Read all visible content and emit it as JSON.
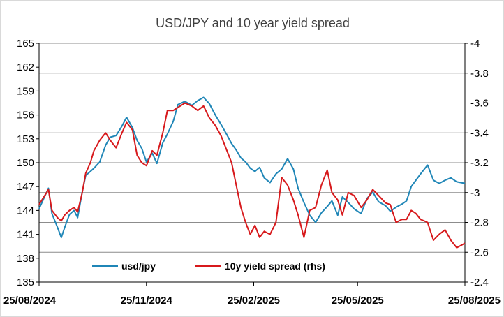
{
  "chart_data": {
    "type": "line",
    "title": "USD/JPY and 10 year yield spread",
    "x_ticks": [
      "25/08/2024",
      "25/11/2024",
      "25/02/2025",
      "25/05/2025",
      "25/08/2025"
    ],
    "y_left": {
      "ylim": [
        135,
        165
      ],
      "ticks": [
        "165",
        "162",
        "159",
        "156",
        "153",
        "150",
        "147",
        "144",
        "141",
        "138",
        "135"
      ]
    },
    "y_right": {
      "ylim": [
        -4.0,
        -2.4
      ],
      "ticks": [
        "-4",
        "-3.8",
        "-3.6",
        "-3.4",
        "-3.2",
        "-3",
        "-2.8",
        "-2.6",
        "-2.4"
      ],
      "inverted": true
    },
    "grid": "horizontal",
    "legend_position": "bottom",
    "colors": {
      "usdjpy": "#1F86B7",
      "spread": "#D7191C"
    },
    "series": [
      {
        "name": "usd/jpy",
        "axis": "left",
        "x": [
          "2024-08-25",
          "2024-08-29",
          "2024-09-02",
          "2024-09-05",
          "2024-09-10",
          "2024-09-13",
          "2024-09-16",
          "2024-09-20",
          "2024-09-24",
          "2024-09-27",
          "2024-10-01",
          "2024-10-04",
          "2024-10-08",
          "2024-10-11",
          "2024-10-16",
          "2024-10-21",
          "2024-10-25",
          "2024-10-30",
          "2024-11-04",
          "2024-11-08",
          "2024-11-13",
          "2024-11-17",
          "2024-11-21",
          "2024-11-25",
          "2024-11-30",
          "2024-12-04",
          "2024-12-09",
          "2024-12-13",
          "2024-12-18",
          "2024-12-22",
          "2024-12-28",
          "2025-01-03",
          "2025-01-08",
          "2025-01-13",
          "2025-01-18",
          "2025-01-23",
          "2025-01-28",
          "2025-02-02",
          "2025-02-06",
          "2025-02-10",
          "2025-02-14",
          "2025-02-18",
          "2025-02-22",
          "2025-02-26",
          "2025-03-02",
          "2025-03-06",
          "2025-03-11",
          "2025-03-16",
          "2025-03-21",
          "2025-03-26",
          "2025-03-31",
          "2025-04-04",
          "2025-04-09",
          "2025-04-14",
          "2025-04-19",
          "2025-04-24",
          "2025-04-29",
          "2025-05-03",
          "2025-05-08",
          "2025-05-12",
          "2025-05-17",
          "2025-05-22",
          "2025-05-28",
          "2025-06-02",
          "2025-06-07",
          "2025-06-12",
          "2025-06-18",
          "2025-06-22",
          "2025-06-27",
          "2025-07-02",
          "2025-07-06",
          "2025-07-10",
          "2025-07-14",
          "2025-07-18",
          "2025-07-24",
          "2025-07-29",
          "2025-08-03",
          "2025-08-08",
          "2025-08-13",
          "2025-08-18",
          "2025-08-25"
        ],
        "values": [
          144.2,
          145.5,
          146.8,
          143.6,
          141.8,
          140.6,
          141.9,
          143.5,
          144.0,
          143.1,
          146.3,
          148.4,
          148.9,
          149.3,
          150.1,
          152.2,
          153.2,
          153.4,
          154.6,
          155.7,
          154.4,
          152.8,
          151.8,
          150.1,
          151.2,
          149.9,
          152.5,
          153.6,
          155.2,
          157.3,
          157.7,
          157.2,
          157.8,
          158.2,
          157.4,
          156.0,
          154.8,
          153.5,
          152.4,
          151.6,
          150.6,
          150.1,
          149.3,
          148.9,
          149.4,
          148.1,
          147.5,
          148.6,
          149.2,
          150.5,
          149.2,
          146.8,
          145.0,
          143.4,
          142.5,
          143.7,
          144.5,
          145.2,
          143.4,
          145.7,
          145.0,
          144.2,
          143.6,
          145.5,
          146.3,
          145.1,
          144.6,
          143.9,
          144.4,
          144.8,
          145.2,
          147.0,
          147.8,
          148.6,
          149.7,
          147.8,
          147.4,
          147.8,
          148.1,
          147.6,
          147.4
        ]
      },
      {
        "name": "10y yield spread (rhs)",
        "axis": "right",
        "x": [
          "2024-08-25",
          "2024-08-29",
          "2024-09-02",
          "2024-09-05",
          "2024-09-10",
          "2024-09-13",
          "2024-09-16",
          "2024-09-20",
          "2024-09-24",
          "2024-09-27",
          "2024-10-01",
          "2024-10-04",
          "2024-10-08",
          "2024-10-11",
          "2024-10-16",
          "2024-10-21",
          "2024-10-25",
          "2024-10-30",
          "2024-11-04",
          "2024-11-08",
          "2024-11-13",
          "2024-11-17",
          "2024-11-21",
          "2024-11-25",
          "2024-11-30",
          "2024-12-04",
          "2024-12-09",
          "2024-12-13",
          "2024-12-18",
          "2024-12-22",
          "2024-12-28",
          "2025-01-03",
          "2025-01-08",
          "2025-01-13",
          "2025-01-18",
          "2025-01-23",
          "2025-01-28",
          "2025-02-02",
          "2025-02-06",
          "2025-02-10",
          "2025-02-14",
          "2025-02-18",
          "2025-02-22",
          "2025-02-26",
          "2025-03-02",
          "2025-03-06",
          "2025-03-11",
          "2025-03-16",
          "2025-03-21",
          "2025-03-26",
          "2025-03-31",
          "2025-04-04",
          "2025-04-09",
          "2025-04-14",
          "2025-04-19",
          "2025-04-24",
          "2025-04-29",
          "2025-05-03",
          "2025-05-08",
          "2025-05-12",
          "2025-05-17",
          "2025-05-22",
          "2025-05-28",
          "2025-06-02",
          "2025-06-07",
          "2025-06-12",
          "2025-06-18",
          "2025-06-22",
          "2025-06-27",
          "2025-07-02",
          "2025-07-06",
          "2025-07-10",
          "2025-07-14",
          "2025-07-18",
          "2025-07-24",
          "2025-07-29",
          "2025-08-03",
          "2025-08-08",
          "2025-08-13",
          "2025-08-18",
          "2025-08-25"
        ],
        "values": [
          -2.92,
          -2.97,
          -3.02,
          -2.88,
          -2.83,
          -2.81,
          -2.85,
          -2.88,
          -2.9,
          -2.87,
          -3.0,
          -3.13,
          -3.2,
          -3.28,
          -3.35,
          -3.4,
          -3.35,
          -3.3,
          -3.4,
          -3.47,
          -3.42,
          -3.25,
          -3.2,
          -3.18,
          -3.28,
          -3.25,
          -3.4,
          -3.55,
          -3.55,
          -3.57,
          -3.6,
          -3.58,
          -3.55,
          -3.58,
          -3.5,
          -3.45,
          -3.38,
          -3.28,
          -3.2,
          -3.05,
          -2.9,
          -2.8,
          -2.72,
          -2.78,
          -2.7,
          -2.74,
          -2.72,
          -2.8,
          -3.1,
          -3.05,
          -2.95,
          -2.85,
          -2.7,
          -2.88,
          -2.9,
          -3.05,
          -3.15,
          -3.0,
          -2.95,
          -2.85,
          -3.0,
          -2.98,
          -2.9,
          -2.95,
          -3.02,
          -2.98,
          -2.93,
          -2.92,
          -2.8,
          -2.82,
          -2.82,
          -2.88,
          -2.86,
          -2.82,
          -2.8,
          -2.68,
          -2.72,
          -2.75,
          -2.68,
          -2.63,
          -2.66
        ]
      }
    ]
  }
}
